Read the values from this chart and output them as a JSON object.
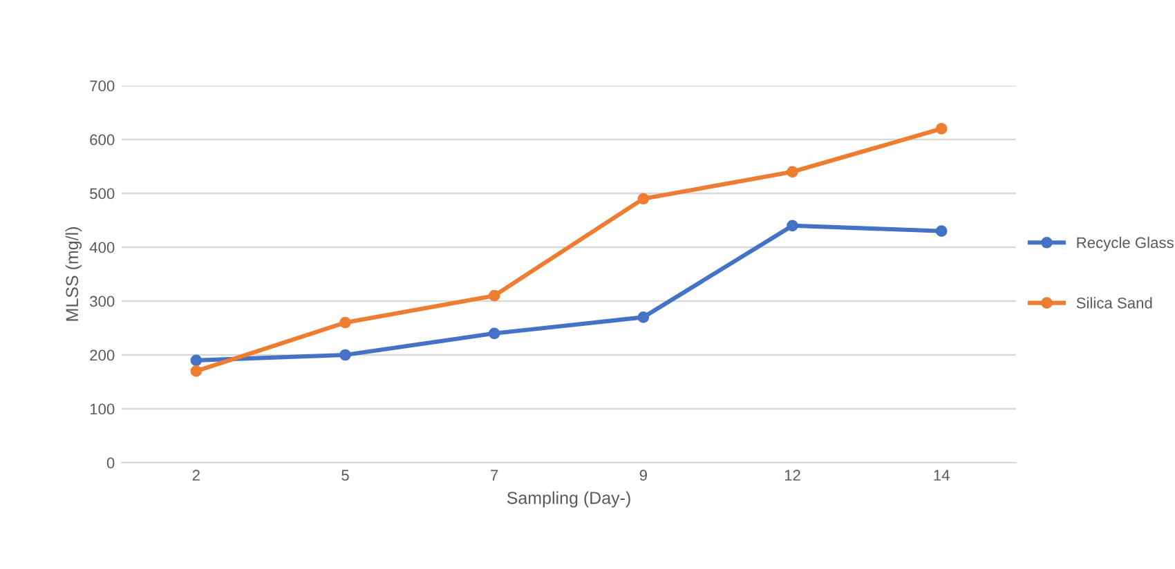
{
  "chart_data": {
    "type": "line",
    "xlabel": "Sampling (Day-)",
    "ylabel": "MLSS (mg/l)",
    "categories": [
      "2",
      "5",
      "7",
      "9",
      "12",
      "14"
    ],
    "series": [
      {
        "name": "Recycle Glass",
        "color": "#4472c4",
        "values": [
          190,
          200,
          240,
          270,
          440,
          430
        ]
      },
      {
        "name": "Silica Sand",
        "color": "#ed7d31",
        "values": [
          170,
          260,
          310,
          490,
          540,
          620
        ]
      }
    ],
    "ylim": [
      0,
      700
    ],
    "yticks": [
      0,
      100,
      200,
      300,
      400,
      500,
      600,
      700
    ],
    "grid": "y",
    "legend": "right",
    "marker": "circle",
    "line_style": "solid"
  }
}
